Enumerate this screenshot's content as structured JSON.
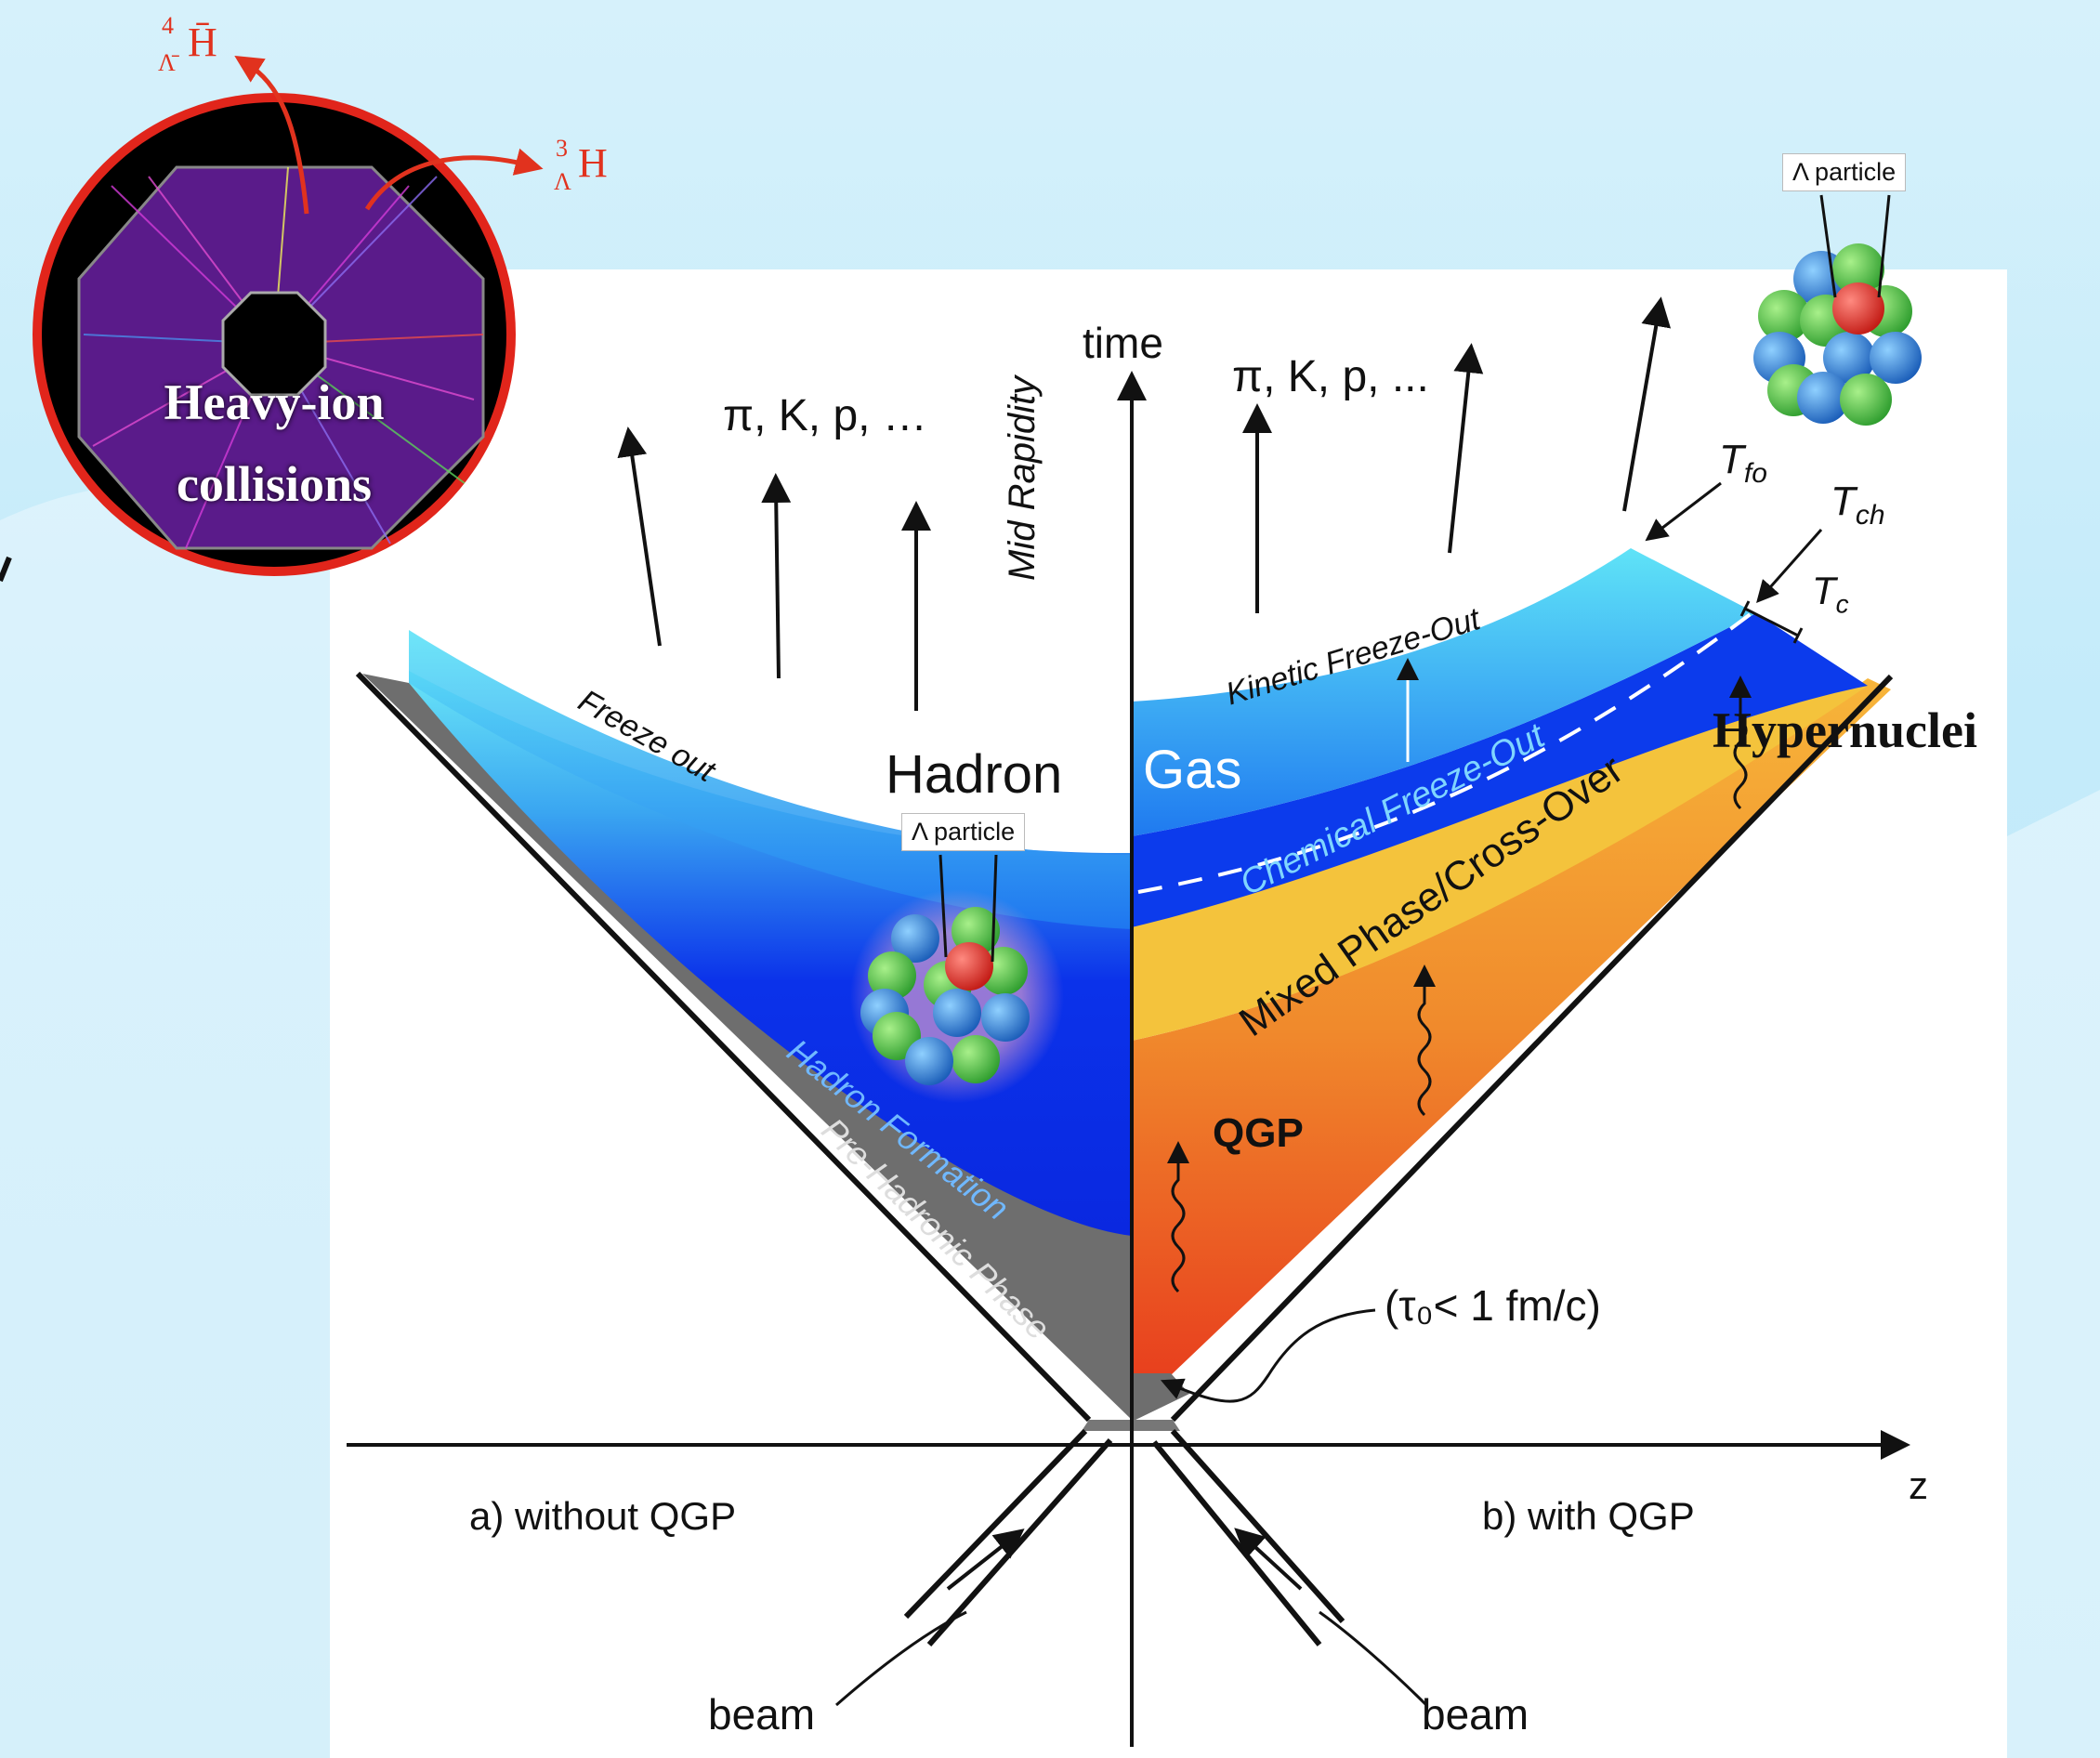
{
  "top_products": {
    "anti_hypertriton_4": "H̄",
    "anti_hypertriton_4_sup": "4",
    "anti_hypertriton_4_sub": "Λ̄",
    "hypertriton_3": "H",
    "hypertriton_3_sup": "3",
    "hypertriton_3_sub": "Λ",
    "color": "#e1321e"
  },
  "collision_badge": {
    "line1": "Heavy-ion",
    "line2": "collisions",
    "ring_color": "#e1251b"
  },
  "diagram": {
    "time_label": "time",
    "z_label": "z",
    "mid_rapidity": "Mid Rapidity",
    "hadrons_left": "π, K, p, …",
    "hadrons_right": "π, K, p, ...",
    "freeze_out": "Freeze out",
    "hadron": "Hadron",
    "gas": "Gas",
    "hadron_formation": "Hadron Formation",
    "pre_hadronic": "Pre-Hadronic Phase",
    "kinetic_freeze_out": "Kinetic Freeze-Out",
    "chemical_freeze_out": "Chemical Freeze-Out",
    "mixed_phase": "Mixed Phase/Cross-Over",
    "qgp": "QGP",
    "tau0": "(τ₀< 1 fm/c)",
    "T_fo": "T",
    "T_fo_sub": "fo",
    "T_ch": "T",
    "T_ch_sub": "ch",
    "T_c": "T",
    "T_c_sub": "c",
    "without_qgp": "a) without QGP",
    "with_qgp": "b) with QGP",
    "beam_left": "beam",
    "beam_right": "beam",
    "lambda_particle_center": "Λ particle",
    "lambda_particle_right": "Λ particle",
    "hypernuclei": "Hypernuclei"
  },
  "colors": {
    "light_blue": "#5ee0f5",
    "deep_blue": "#0a2ee8",
    "gray": "#6e6e6e",
    "yellow": "#f4c33c",
    "orange": "#f08a2c",
    "red": "#e8401e"
  }
}
